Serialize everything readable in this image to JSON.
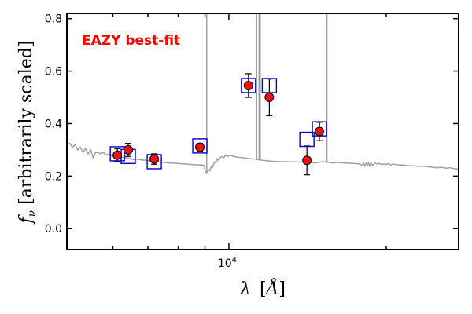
{
  "chart_data": {
    "type": "scatter",
    "title": "",
    "annotation": "EAZY best-fit",
    "annotation_color": "#ff0000",
    "xlabel_parts": {
      "lambda": "λ",
      "open": "[",
      "unit": "Å",
      "close": "]"
    },
    "ylabel_parts": {
      "f": "f",
      "sub": "ν",
      "rest": " [arbitrarily scaled]"
    },
    "x_scale": "log",
    "xlim": [
      4900,
      27500
    ],
    "ylim": [
      -0.08,
      0.82
    ],
    "x_tick_labels": [
      {
        "value": 10000,
        "base": "10",
        "exp": "4"
      }
    ],
    "x_minor_ticks": [
      6000,
      7000,
      8000,
      9000,
      20000
    ],
    "y_ticks": [
      0.0,
      0.2,
      0.4,
      0.6,
      0.8
    ],
    "y_tick_labels": [
      "0.0",
      "0.2",
      "0.4",
      "0.6",
      "0.8"
    ],
    "grid": false,
    "colors": {
      "sed_line": "#a0a0a0",
      "model_box": "#0000cc",
      "obs_face": "#ee1111",
      "obs_edge": "#000000",
      "error_bar": "#000000"
    },
    "series": [
      {
        "kind": "line",
        "points": [
          [
            4900,
            0.32
          ],
          [
            4960,
            0.325
          ],
          [
            5020,
            0.31
          ],
          [
            5080,
            0.32
          ],
          [
            5140,
            0.3
          ],
          [
            5200,
            0.31
          ],
          [
            5260,
            0.29
          ],
          [
            5320,
            0.305
          ],
          [
            5380,
            0.285
          ],
          [
            5440,
            0.3
          ],
          [
            5500,
            0.27
          ],
          [
            5560,
            0.29
          ],
          [
            5620,
            0.29
          ],
          [
            5680,
            0.285
          ],
          [
            5750,
            0.29
          ],
          [
            5830,
            0.28
          ],
          [
            5900,
            0.285
          ],
          [
            5980,
            0.275
          ],
          [
            6060,
            0.28
          ],
          [
            6150,
            0.275
          ],
          [
            6250,
            0.272
          ],
          [
            6350,
            0.27
          ],
          [
            6450,
            0.268
          ],
          [
            6563,
            0.262
          ],
          [
            6650,
            0.265
          ],
          [
            6800,
            0.262
          ],
          [
            6950,
            0.26
          ],
          [
            7100,
            0.257
          ],
          [
            7300,
            0.255
          ],
          [
            7500,
            0.252
          ],
          [
            7700,
            0.25
          ],
          [
            7900,
            0.249
          ],
          [
            8100,
            0.247
          ],
          [
            8300,
            0.246
          ],
          [
            8500,
            0.244
          ],
          [
            8700,
            0.243
          ],
          [
            8900,
            0.242
          ],
          [
            8960,
            0.24
          ],
          [
            9000,
            0.225
          ],
          [
            9020,
            0.212
          ],
          [
            9060,
            0.21
          ],
          [
            9100,
            0.215
          ],
          [
            9150,
            0.225
          ],
          [
            9200,
            0.22
          ],
          [
            9250,
            0.235
          ],
          [
            9300,
            0.232
          ],
          [
            9350,
            0.245
          ],
          [
            9400,
            0.255
          ],
          [
            9450,
            0.25
          ],
          [
            9500,
            0.265
          ],
          [
            9560,
            0.26
          ],
          [
            9620,
            0.27
          ],
          [
            9700,
            0.275
          ],
          [
            9780,
            0.27
          ],
          [
            9850,
            0.28
          ],
          [
            9950,
            0.275
          ],
          [
            10050,
            0.28
          ],
          [
            10200,
            0.275
          ],
          [
            10400,
            0.272
          ],
          [
            10600,
            0.27
          ],
          [
            10800,
            0.268
          ],
          [
            11000,
            0.266
          ],
          [
            11200,
            0.265
          ],
          [
            11400,
            0.262
          ],
          [
            11600,
            0.26
          ],
          [
            11900,
            0.258
          ],
          [
            12200,
            0.256
          ],
          [
            12500,
            0.255
          ],
          [
            12800,
            0.255
          ],
          [
            13100,
            0.254
          ],
          [
            13400,
            0.254
          ],
          [
            13700,
            0.253
          ],
          [
            14000,
            0.254
          ],
          [
            14300,
            0.252
          ],
          [
            14600,
            0.25
          ],
          [
            14900,
            0.253
          ],
          [
            15200,
            0.255
          ],
          [
            15500,
            0.252
          ],
          [
            15800,
            0.25
          ],
          [
            16200,
            0.252
          ],
          [
            16600,
            0.25
          ],
          [
            17000,
            0.249
          ],
          [
            17400,
            0.248
          ],
          [
            17800,
            0.246
          ],
          [
            18000,
            0.24
          ],
          [
            18100,
            0.25
          ],
          [
            18200,
            0.238
          ],
          [
            18300,
            0.25
          ],
          [
            18400,
            0.24
          ],
          [
            18500,
            0.25
          ],
          [
            18600,
            0.238
          ],
          [
            18700,
            0.25
          ],
          [
            18850,
            0.24
          ],
          [
            19000,
            0.25
          ],
          [
            19200,
            0.246
          ],
          [
            19400,
            0.248
          ],
          [
            19600,
            0.244
          ],
          [
            19800,
            0.246
          ],
          [
            20000,
            0.244
          ],
          [
            20200,
            0.248
          ],
          [
            20400,
            0.242
          ],
          [
            20600,
            0.246
          ],
          [
            20800,
            0.244
          ],
          [
            21000,
            0.243
          ],
          [
            21500,
            0.242
          ],
          [
            22000,
            0.24
          ],
          [
            22500,
            0.239
          ],
          [
            23000,
            0.237
          ],
          [
            23500,
            0.238
          ],
          [
            24000,
            0.236
          ],
          [
            24500,
            0.234
          ],
          [
            25000,
            0.232
          ],
          [
            25500,
            0.234
          ],
          [
            26000,
            0.23
          ],
          [
            26500,
            0.232
          ],
          [
            27000,
            0.228
          ],
          [
            27500,
            0.227
          ]
        ],
        "emission_lines": [
          {
            "x": 9070,
            "y": 0.82
          },
          {
            "x": 11300,
            "y": 0.82
          },
          {
            "x": 11420,
            "y": 0.82
          },
          {
            "x": 11480,
            "y": 0.82
          },
          {
            "x": 15400,
            "y": 0.82
          }
        ]
      },
      {
        "kind": "model_boxes",
        "points": [
          [
            6120,
            0.285
          ],
          [
            6420,
            0.275
          ],
          [
            7200,
            0.255
          ],
          [
            8800,
            0.315
          ],
          [
            10900,
            0.545
          ],
          [
            11950,
            0.545
          ],
          [
            14100,
            0.34
          ],
          [
            14900,
            0.38
          ]
        ]
      },
      {
        "kind": "observed",
        "points": [
          {
            "x": 6120,
            "y": 0.28,
            "err": 0.025
          },
          {
            "x": 6420,
            "y": 0.3,
            "err": 0.025
          },
          {
            "x": 7200,
            "y": 0.265,
            "err": 0.02
          },
          {
            "x": 8800,
            "y": 0.31,
            "err": 0.015
          },
          {
            "x": 10900,
            "y": 0.545,
            "err": 0.045
          },
          {
            "x": 11950,
            "y": 0.5,
            "err": 0.07
          },
          {
            "x": 14100,
            "y": 0.26,
            "err": 0.055
          },
          {
            "x": 14900,
            "y": 0.37,
            "err": 0.035
          }
        ]
      }
    ]
  }
}
